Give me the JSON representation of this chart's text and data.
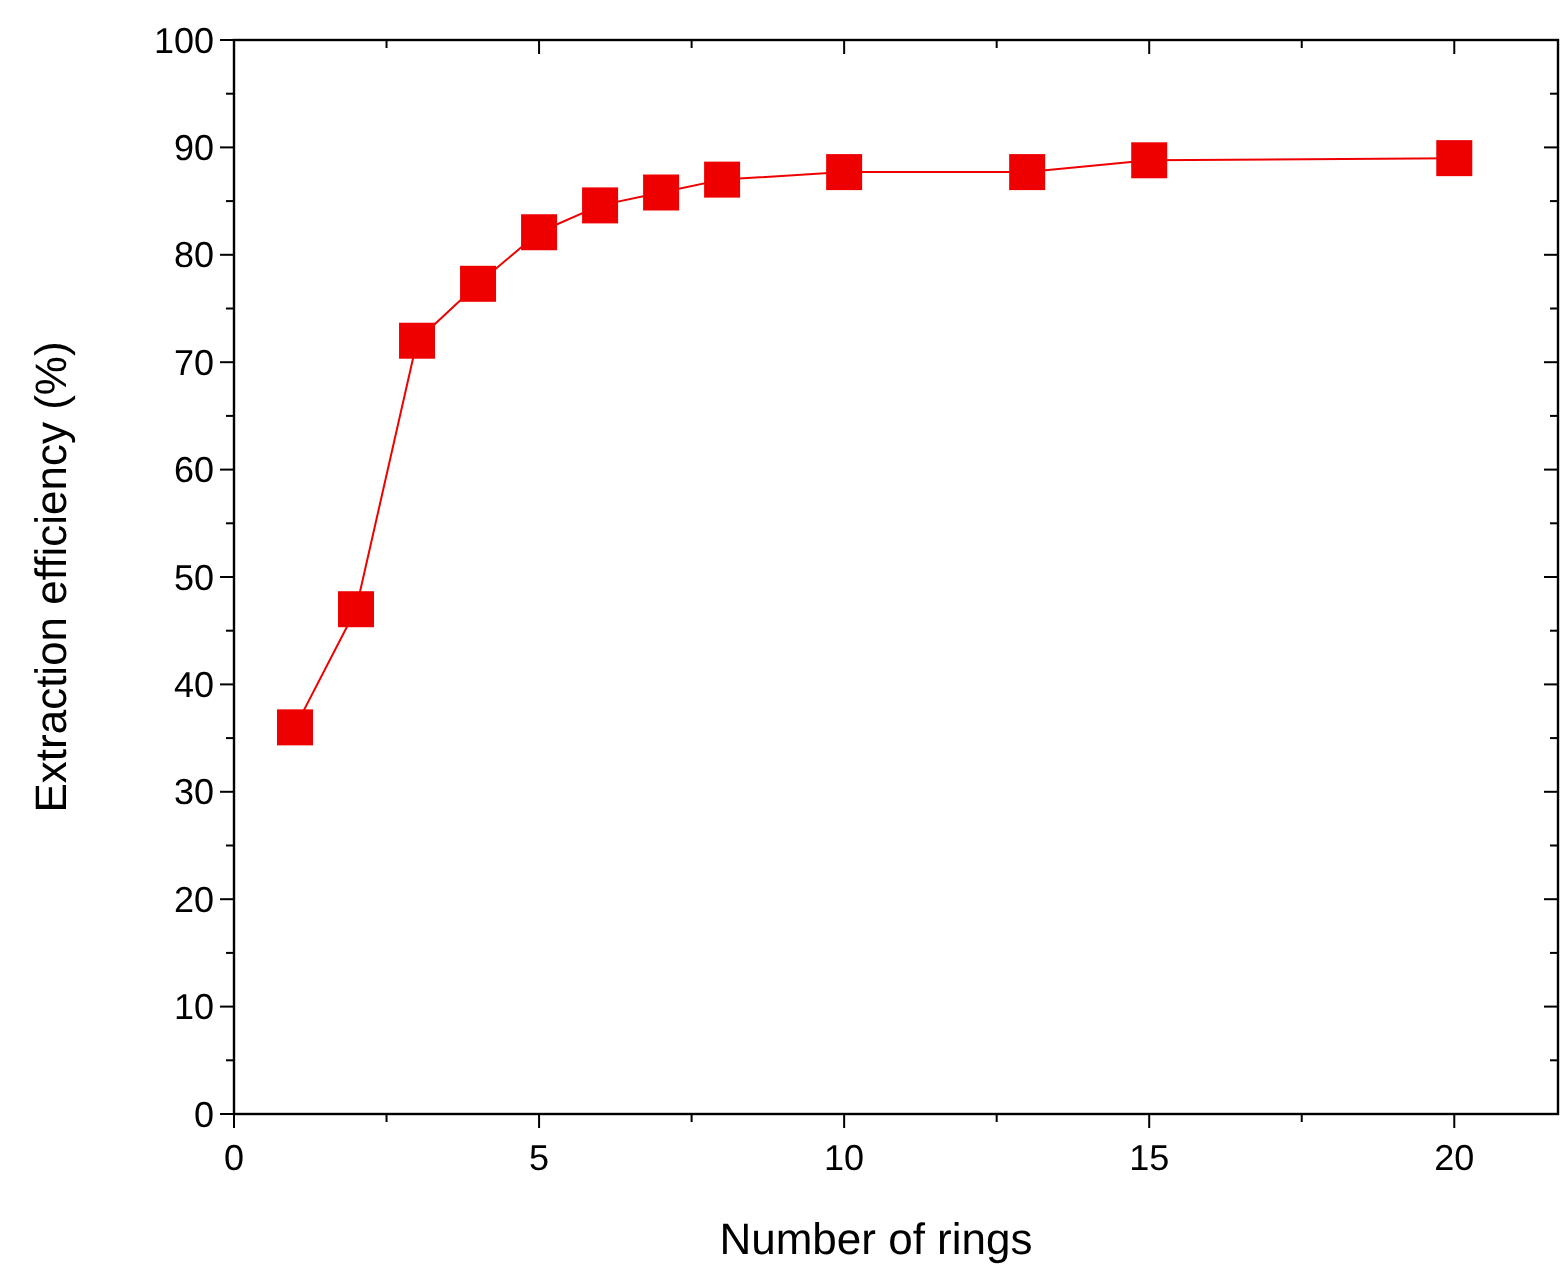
{
  "chart_data": {
    "type": "line",
    "xlabel": "Number of rings",
    "ylabel": "Extraction efficiency (%)",
    "x": [
      1,
      2,
      3,
      4,
      5,
      6,
      7,
      8,
      10,
      13,
      15,
      20
    ],
    "series": [
      {
        "color": "#ee0000",
        "values": [
          36,
          47,
          72,
          77.3,
          82.1,
          84.6,
          85.8,
          87,
          87.7,
          87.7,
          88.8,
          89
        ]
      }
    ],
    "marker": "square",
    "line_style": "solid",
    "xlim": [
      0,
      21.7
    ],
    "xticks": [
      0,
      {
        "value": 2.5,
        "label": null
      },
      5,
      {
        "value": 7.5,
        "label": null
      },
      10,
      {
        "value": 12.5,
        "label": null
      },
      15,
      {
        "value": 17.5,
        "label": null
      },
      20
    ],
    "ylim": [
      0,
      100
    ],
    "yticks": [
      0,
      {
        "value": 5,
        "label": null
      },
      10,
      {
        "value": 15,
        "label": null
      },
      20,
      {
        "value": 25,
        "label": null
      },
      30,
      {
        "value": 35,
        "label": null
      },
      40,
      {
        "value": 45,
        "label": null
      },
      50,
      {
        "value": 55,
        "label": null
      },
      60,
      {
        "value": 65,
        "label": null
      },
      70,
      {
        "value": 75,
        "label": null
      },
      80,
      {
        "value": 85,
        "label": null
      },
      90,
      {
        "value": 95,
        "label": null
      },
      100
    ]
  }
}
